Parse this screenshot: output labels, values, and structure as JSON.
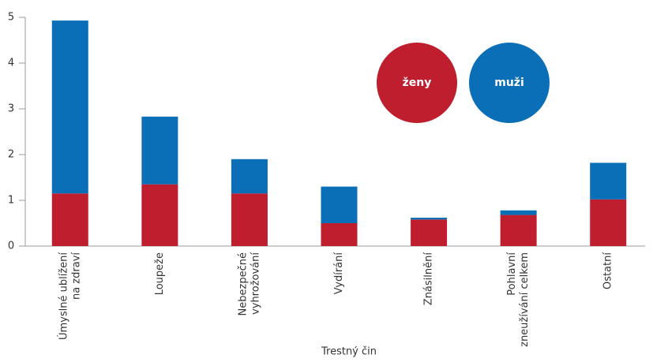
{
  "chart_data": {
    "type": "stacked_bar",
    "x_label": "Trestný čin",
    "categories": [
      [
        "Úmyslné ublížení",
        "na zdraví"
      ],
      [
        "Loupeže"
      ],
      [
        "Nebezpečné",
        "vyhrožování"
      ],
      [
        "Vydírání"
      ],
      [
        "Znásilnění"
      ],
      [
        "Pohlavní",
        "zneužívání celkem"
      ],
      [
        "Ostatní"
      ]
    ],
    "series": [
      {
        "name": "ženy",
        "color": "#be1e2d",
        "values": [
          1.15,
          1.35,
          1.15,
          0.5,
          0.58,
          0.68,
          1.02
        ]
      },
      {
        "name": "muži",
        "color": "#0b6fb8",
        "values": [
          3.78,
          1.48,
          0.75,
          0.8,
          0.04,
          0.1,
          0.8
        ]
      }
    ],
    "ylim": [
      0,
      5
    ],
    "yticks": [
      0,
      1,
      2,
      3,
      4,
      5
    ]
  }
}
